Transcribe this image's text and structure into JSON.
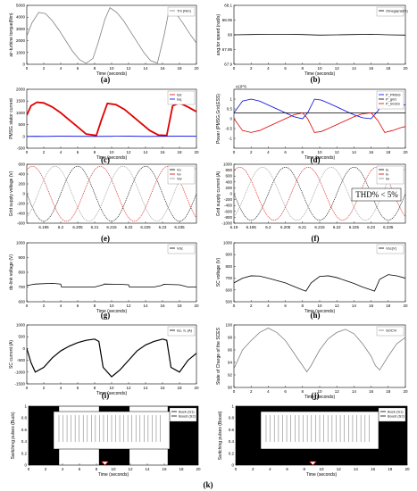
{
  "figure_label": "(k)",
  "chart_data": [
    {
      "id": "a",
      "panel_label": "(a)",
      "type": "line",
      "xlabel": "Time (seconds)",
      "ylabel": "air-turbine torque(Nm)",
      "xlim": [
        0,
        20
      ],
      "ylim": [
        0,
        5000
      ],
      "xticks": [
        0,
        2,
        4,
        6,
        8,
        10,
        12,
        14,
        16,
        18,
        20
      ],
      "yticks": [
        0,
        1000,
        2000,
        3000,
        4000,
        5000
      ],
      "legend": [
        "Tm (Nm)"
      ],
      "legend_position": "top-right",
      "series": [
        {
          "name": "Tm (Nm)",
          "color": "#808080",
          "x": [
            0,
            0.6,
            1.4,
            2.2,
            3.0,
            3.8,
            4.6,
            5.4,
            6.2,
            7.0,
            7.8,
            8.4,
            9.2,
            9.8,
            10.6,
            11.4,
            12.2,
            13.0,
            13.8,
            14.6,
            15.4,
            16.2,
            16.8,
            17.6,
            18.4,
            19.2,
            20
          ],
          "y": [
            2400,
            3500,
            4400,
            4300,
            3700,
            2900,
            2000,
            1100,
            400,
            80,
            500,
            1800,
            3800,
            4800,
            4400,
            3700,
            2800,
            1900,
            1000,
            300,
            100,
            2500,
            4700,
            4300,
            3500,
            2600,
            1800
          ]
        }
      ]
    },
    {
      "id": "b",
      "panel_label": "(b)",
      "type": "line",
      "xlabel": "Time (seconds)",
      "ylabel": "ang.tor speed (rad/s)",
      "xlim": [
        0,
        20
      ],
      "ylim": [
        67.9,
        68.1
      ],
      "xticks": [
        0,
        2,
        4,
        6,
        8,
        10,
        12,
        14,
        16,
        18,
        20
      ],
      "yticks": [
        67.9,
        67.95,
        68,
        68.05,
        68.1
      ],
      "legend": [
        "Omega(rad/s)"
      ],
      "legend_position": "top-right",
      "series": [
        {
          "name": "Omega(rad/s)",
          "color": "#000000",
          "x": [
            0,
            2,
            4,
            6,
            8,
            10,
            12,
            14,
            16,
            18,
            20
          ],
          "y": [
            68,
            68.001,
            68.002,
            68.002,
            68.001,
            67.999,
            68,
            68.001,
            68.002,
            68,
            67.999
          ]
        }
      ]
    },
    {
      "id": "c",
      "panel_label": "(c)",
      "type": "line",
      "xlabel": "Time (seconds)",
      "ylabel": "PMSG stator current",
      "xlim": [
        0,
        20
      ],
      "ylim": [
        -500,
        2000
      ],
      "xticks": [
        0,
        2,
        4,
        6,
        8,
        10,
        12,
        14,
        16,
        18,
        20
      ],
      "yticks": [
        -500,
        0,
        500,
        1000,
        1500,
        2000
      ],
      "legend": [
        "Isd",
        "Isq"
      ],
      "legend_position": "top-right",
      "series": [
        {
          "name": "Isd",
          "color": "#e00000",
          "x": [
            0,
            0.5,
            1.2,
            2.0,
            3.0,
            4.0,
            5.0,
            6.0,
            7.0,
            8.2,
            8.8,
            9.5,
            10.5,
            11.5,
            12.5,
            13.5,
            14.5,
            15.5,
            16.5,
            17.2,
            18,
            19,
            20
          ],
          "y": [
            900,
            1300,
            1450,
            1420,
            1250,
            1000,
            700,
            400,
            100,
            40,
            700,
            1400,
            1350,
            1150,
            850,
            550,
            250,
            60,
            40,
            1300,
            1420,
            1250,
            1050
          ]
        },
        {
          "name": "Isq",
          "color": "#0000e0",
          "x": [
            0,
            1,
            2,
            4,
            6,
            8,
            10,
            12,
            14,
            16,
            18,
            20
          ],
          "y": [
            0,
            5,
            0,
            10,
            5,
            0,
            5,
            10,
            0,
            5,
            10,
            5
          ]
        }
      ]
    },
    {
      "id": "d",
      "panel_label": "(d)",
      "type": "line",
      "xlabel": "Time (seconds)",
      "ylabel": "Power (PMSG,Grid,ESS)",
      "xlim": [
        0,
        20
      ],
      "ylim": [
        -1.5,
        1.5
      ],
      "y_multiplier": "x10^6",
      "xticks": [
        0,
        2,
        4,
        6,
        8,
        10,
        12,
        14,
        16,
        18,
        20
      ],
      "yticks": [
        -1,
        -0.5,
        0,
        0.5,
        1
      ],
      "legend": [
        "P_PMSG",
        "P_grid",
        "P_SCES"
      ],
      "legend_position": "top-right",
      "series": [
        {
          "name": "P_PMSG",
          "color": "#0000e0",
          "x": [
            0,
            1,
            2,
            3,
            4,
            5,
            6,
            7,
            8,
            8.6,
            9.4,
            10.2,
            11,
            12,
            13,
            14,
            15,
            16,
            16.8,
            17.6,
            18.5,
            19.5,
            20
          ],
          "y": [
            0.3,
            0.9,
            1.0,
            0.9,
            0.7,
            0.5,
            0.3,
            0.1,
            0.0,
            0.3,
            1.0,
            0.95,
            0.8,
            0.6,
            0.4,
            0.2,
            0.05,
            0.0,
            0.4,
            1.0,
            0.9,
            0.75,
            0.7
          ]
        },
        {
          "name": "P_grid",
          "color": "#000000",
          "x": [
            0,
            20
          ],
          "y": [
            0.3,
            0.3
          ]
        },
        {
          "name": "P_SCES",
          "color": "#e00000",
          "x": [
            0,
            1,
            2,
            3,
            4,
            5,
            6,
            7,
            8,
            8.6,
            9.4,
            10.2,
            11,
            12,
            13,
            14,
            15,
            16,
            16.8,
            17.6,
            18.5,
            19.5,
            20
          ],
          "y": [
            0,
            -0.6,
            -0.7,
            -0.6,
            -0.4,
            -0.2,
            0,
            0.2,
            0.3,
            0,
            -0.7,
            -0.65,
            -0.5,
            -0.3,
            -0.1,
            0.1,
            0.25,
            0.3,
            -0.1,
            -0.7,
            -0.6,
            -0.45,
            -0.4
          ]
        }
      ]
    },
    {
      "id": "e",
      "panel_label": "(e)",
      "type": "line",
      "xlabel": "",
      "ylabel": "Grid supply voltage (V)",
      "xlim": [
        6.19,
        6.24
      ],
      "ylim": [
        -600,
        600
      ],
      "xticks": [
        6.195,
        6.2,
        6.205,
        6.21,
        6.215,
        6.22,
        6.225,
        6.23,
        6.235
      ],
      "yticks": [
        -600,
        -400,
        -200,
        0,
        200,
        400,
        600
      ],
      "legend": [
        "Vu",
        "Vv",
        "Vw"
      ],
      "legend_position": "top-right",
      "waveform": {
        "amplitude": 560,
        "frequency_hz": 50
      },
      "series": [
        {
          "name": "Vu",
          "color": "#000000"
        },
        {
          "name": "Vv",
          "color": "#e00000"
        },
        {
          "name": "Vw",
          "color": "#909090"
        }
      ]
    },
    {
      "id": "f",
      "panel_label": "(f)",
      "type": "line",
      "xlabel": "",
      "ylabel": "Grid supply current (A)",
      "xlim": [
        6.19,
        6.24
      ],
      "ylim": [
        -1000,
        1000
      ],
      "xticks": [
        6.19,
        6.195,
        6.2,
        6.205,
        6.21,
        6.215,
        6.22,
        6.225,
        6.23,
        6.235
      ],
      "yticks": [
        -1000,
        -800,
        -600,
        -400,
        -200,
        0,
        200,
        400,
        600,
        800,
        1000
      ],
      "legend": [
        "Iu",
        "Iv",
        "Iw"
      ],
      "legend_position": "top-right",
      "annotation": "THD% < 5%",
      "waveform": {
        "amplitude": 900,
        "frequency_hz": 50
      },
      "series": [
        {
          "name": "Iu",
          "color": "#000000"
        },
        {
          "name": "Iv",
          "color": "#e00000"
        },
        {
          "name": "Iw",
          "color": "#909090"
        }
      ]
    },
    {
      "id": "g",
      "panel_label": "(g)",
      "type": "line",
      "xlabel": "Time (seconds)",
      "ylabel": "dc-link voltage (V)",
      "xlim": [
        0,
        20
      ],
      "ylim": [
        600,
        1000
      ],
      "xticks": [
        0,
        2,
        4,
        6,
        8,
        10,
        12,
        14,
        16,
        18,
        20
      ],
      "yticks": [
        600,
        700,
        800,
        900,
        1000
      ],
      "legend": [
        "Vdc"
      ],
      "legend_position": "top-right",
      "series": [
        {
          "name": "Vdc",
          "color": "#000000",
          "x": [
            0,
            0.5,
            1,
            3,
            4,
            4.1,
            5,
            8,
            9,
            9.1,
            11,
            12,
            12.1,
            15,
            16,
            16.1,
            18,
            19,
            19.1,
            20
          ],
          "y": [
            710,
            715,
            720,
            725,
            720,
            700,
            700,
            700,
            715,
            720,
            718,
            715,
            700,
            700,
            712,
            718,
            715,
            700,
            700,
            700
          ]
        }
      ]
    },
    {
      "id": "h",
      "panel_label": "(h)",
      "type": "line",
      "xlabel": "Time (seconds)",
      "ylabel": "SC voltage (V)",
      "xlim": [
        0,
        20
      ],
      "ylim": [
        500,
        1000
      ],
      "xticks": [
        0,
        2,
        4,
        6,
        8,
        10,
        12,
        14,
        16,
        18,
        20
      ],
      "yticks": [
        500,
        600,
        700,
        800,
        900,
        1000
      ],
      "legend": [
        "Vsc(V)"
      ],
      "legend_position": "top-right",
      "series": [
        {
          "name": "Vsc(V)",
          "color": "#000000",
          "x": [
            0,
            1,
            2,
            3,
            4,
            5,
            6,
            7,
            8,
            8.4,
            9,
            10,
            11,
            12,
            13,
            14,
            15,
            16,
            16.4,
            17,
            18,
            19,
            20
          ],
          "y": [
            660,
            700,
            720,
            718,
            700,
            680,
            660,
            630,
            600,
            590,
            660,
            715,
            720,
            705,
            680,
            655,
            625,
            600,
            590,
            690,
            730,
            720,
            700
          ]
        }
      ]
    },
    {
      "id": "i",
      "panel_label": "(i)",
      "type": "line",
      "xlabel": "Time (seconds)",
      "ylabel": "SC current (A)",
      "xlim": [
        0,
        20
      ],
      "ylim": [
        -1500,
        1000
      ],
      "xticks": [
        0,
        2,
        4,
        6,
        8,
        10,
        12,
        14,
        16,
        18,
        20
      ],
      "yticks": [
        -1500,
        -1000,
        -500,
        0,
        500,
        1000
      ],
      "legend": [
        "Isc, IL (A)"
      ],
      "legend_position": "top-right",
      "series": [
        {
          "name": "Isc, IL (A)",
          "color": "#000000",
          "x": [
            0,
            0.5,
            1,
            2,
            3,
            4,
            5,
            6,
            7,
            8,
            8.5,
            9,
            10,
            11,
            12,
            13,
            14,
            15,
            16,
            16.5,
            17,
            18,
            19,
            20
          ],
          "y": [
            0,
            -600,
            -1000,
            -800,
            -400,
            -100,
            100,
            250,
            350,
            400,
            300,
            -800,
            -1200,
            -900,
            -500,
            -100,
            150,
            300,
            400,
            350,
            -800,
            -1000,
            -500,
            -200
          ]
        }
      ]
    },
    {
      "id": "j",
      "panel_label": "(j)",
      "type": "line",
      "xlabel": "Time (seconds)",
      "ylabel": "State of Charge of the SCES",
      "xlim": [
        0,
        20
      ],
      "ylim": [
        90,
        100
      ],
      "xticks": [
        0,
        2,
        4,
        6,
        8,
        10,
        12,
        14,
        16,
        18,
        20
      ],
      "yticks": [
        90,
        92,
        94,
        96,
        98,
        100
      ],
      "legend": [
        "SOC%"
      ],
      "legend_position": "top-right",
      "series": [
        {
          "name": "SOC%",
          "color": "#808080",
          "x": [
            0,
            1,
            2,
            3,
            4,
            5,
            6,
            7,
            8,
            8.5,
            9,
            10,
            11,
            12,
            13,
            14,
            15,
            16,
            16.5,
            17,
            18,
            19,
            20
          ],
          "y": [
            93,
            96,
            97.5,
            98.8,
            99.5,
            98.8,
            97.5,
            95.5,
            93.5,
            92.5,
            93.5,
            96,
            97.8,
            98.8,
            99.3,
            98.6,
            97,
            95,
            93.5,
            92.8,
            95,
            97,
            98
          ]
        }
      ]
    },
    {
      "id": "k1",
      "panel_label": "",
      "type": "line",
      "xlabel": "Time (seconds)",
      "ylabel": "Switching pulses (Buck)",
      "xlim": [
        0,
        20
      ],
      "ylim": [
        0,
        1
      ],
      "xticks": [
        0,
        2,
        4,
        6,
        8,
        10,
        12,
        14,
        16,
        18,
        20
      ],
      "yticks": [
        0,
        0.2,
        0.4,
        0.6,
        0.8,
        1
      ],
      "legend": [
        "Buck (S1)",
        "Boost (S2)"
      ],
      "legend_position": "top-right",
      "series": [
        {
          "name": "Buck (S1)",
          "color": "#000000",
          "on_intervals": [
            [
              0,
              3.6
            ],
            [
              8.3,
              11.9
            ],
            [
              16.4,
              20
            ]
          ]
        }
      ]
    },
    {
      "id": "k2",
      "panel_label": "",
      "type": "line",
      "xlabel": "Time (seconds)",
      "ylabel": "Switching pulses (Boost)",
      "xlim": [
        0,
        20
      ],
      "ylim": [
        0,
        1
      ],
      "xticks": [
        0,
        2,
        4,
        6,
        8,
        10,
        12,
        14,
        16,
        18,
        20
      ],
      "yticks": [
        0,
        0.2,
        0.4,
        0.6,
        0.8,
        1
      ],
      "legend": [
        "Buck (S1)",
        "Boost (S2)"
      ],
      "legend_position": "top-right",
      "series": [
        {
          "name": "Boost (S2)",
          "color": "#000000",
          "on_intervals": [
            [
              0,
              20
            ]
          ]
        }
      ]
    }
  ]
}
